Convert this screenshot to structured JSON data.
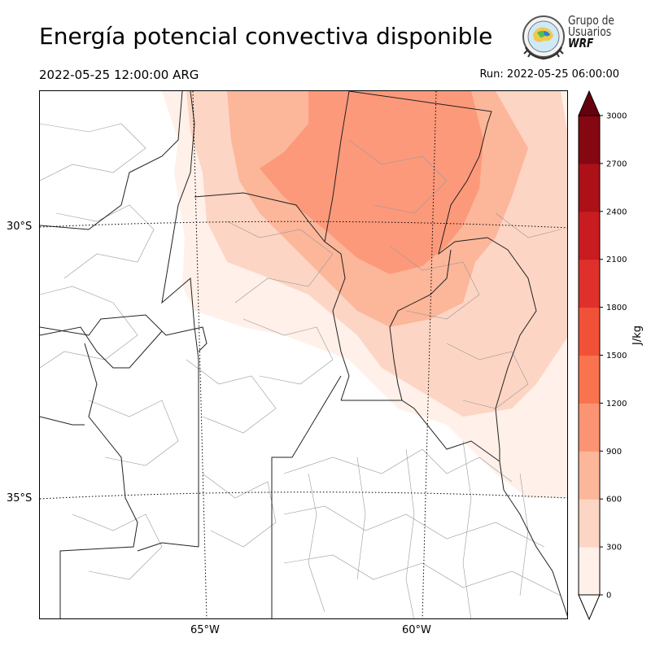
{
  "header": {
    "title": "Energía potencial convectiva disponible",
    "valid_time": "2022-05-25 12:00:00 ARG",
    "run_time": "Run: 2022-05-25 06:00:00"
  },
  "logo": {
    "line1": "Grupo de",
    "line2": "Usuarios",
    "line3": "WRF"
  },
  "map": {
    "lat_labels": [
      "30°S",
      "35°S"
    ],
    "lon_labels": [
      "65°W",
      "60°W"
    ]
  },
  "colorbar": {
    "units": "J/kg",
    "ticks": [
      "0",
      "300",
      "600",
      "900",
      "1200",
      "1500",
      "1800",
      "2100",
      "2400",
      "2700",
      "3000"
    ],
    "colors": [
      "#fff0e9",
      "#fdd5c4",
      "#fcb69a",
      "#fc9474",
      "#f9734f",
      "#f15237",
      "#e0302c",
      "#c91c20",
      "#ab1117",
      "#850711"
    ],
    "over_color": "#67000d"
  }
}
